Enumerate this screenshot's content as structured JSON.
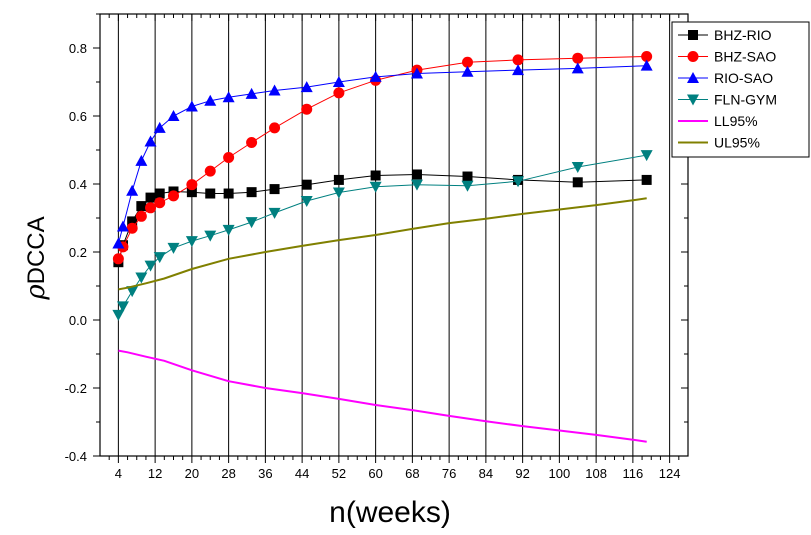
{
  "chart_data": {
    "type": "line",
    "title": "",
    "xlabel": "n(weeks)",
    "ylabel_rho": "ρ",
    "ylabel_rest": "DCCA",
    "xlim": [
      0,
      128
    ],
    "ylim": [
      -0.4,
      0.9
    ],
    "xticks": [
      4,
      12,
      20,
      28,
      36,
      44,
      52,
      60,
      68,
      76,
      84,
      92,
      100,
      108,
      116,
      124
    ],
    "yticks": [
      -0.4,
      -0.2,
      0.0,
      0.2,
      0.4,
      0.6,
      0.8
    ],
    "ytick_labels": [
      "-0.4",
      "-0.2",
      "0.0",
      "0.2",
      "0.4",
      "0.6",
      "0.8"
    ],
    "grid": "vertical",
    "legend_position": "top-right",
    "series": [
      {
        "name": "BHZ-RIO",
        "color": "#000000",
        "marker": "square",
        "x": [
          4,
          5,
          7,
          9,
          11,
          13,
          16,
          20,
          24,
          28,
          33,
          38,
          45,
          52,
          60,
          69,
          80,
          91,
          104,
          119
        ],
        "y": [
          0.17,
          0.22,
          0.29,
          0.335,
          0.36,
          0.372,
          0.378,
          0.376,
          0.372,
          0.372,
          0.376,
          0.385,
          0.398,
          0.412,
          0.425,
          0.428,
          0.422,
          0.412,
          0.405,
          0.412
        ]
      },
      {
        "name": "BHZ-SAO",
        "color": "#ff0000",
        "marker": "circle",
        "x": [
          4,
          5,
          7,
          9,
          11,
          13,
          16,
          20,
          24,
          28,
          33,
          38,
          45,
          52,
          60,
          69,
          80,
          91,
          104,
          119
        ],
        "y": [
          0.18,
          0.215,
          0.27,
          0.305,
          0.33,
          0.345,
          0.365,
          0.398,
          0.438,
          0.478,
          0.522,
          0.565,
          0.62,
          0.668,
          0.705,
          0.735,
          0.758,
          0.765,
          0.77,
          0.775
        ]
      },
      {
        "name": "RIO-SAO",
        "color": "#0000ff",
        "marker": "triangle-up",
        "x": [
          4,
          5,
          7,
          9,
          11,
          13,
          16,
          20,
          24,
          28,
          33,
          38,
          45,
          52,
          60,
          69,
          80,
          91,
          104,
          119
        ],
        "y": [
          0.225,
          0.275,
          0.38,
          0.468,
          0.525,
          0.565,
          0.6,
          0.628,
          0.645,
          0.655,
          0.665,
          0.675,
          0.685,
          0.7,
          0.715,
          0.725,
          0.73,
          0.735,
          0.74,
          0.748
        ]
      },
      {
        "name": "FLN-GYM",
        "color": "#008080",
        "marker": "triangle-down",
        "x": [
          4,
          5,
          7,
          9,
          11,
          13,
          16,
          20,
          24,
          28,
          33,
          38,
          45,
          52,
          60,
          69,
          80,
          91,
          104,
          119
        ],
        "y": [
          0.015,
          0.04,
          0.085,
          0.125,
          0.16,
          0.185,
          0.212,
          0.232,
          0.248,
          0.265,
          0.288,
          0.315,
          0.35,
          0.375,
          0.392,
          0.398,
          0.395,
          0.408,
          0.45,
          0.485
        ]
      },
      {
        "name": "LL95%",
        "color": "#ff00ff",
        "marker": "none",
        "x": [
          4,
          6,
          10,
          14,
          20,
          28,
          36,
          44,
          52,
          60,
          68,
          76,
          84,
          92,
          100,
          108,
          116,
          119
        ],
        "y": [
          -0.09,
          -0.095,
          -0.108,
          -0.12,
          -0.148,
          -0.18,
          -0.2,
          -0.215,
          -0.232,
          -0.25,
          -0.265,
          -0.282,
          -0.298,
          -0.312,
          -0.325,
          -0.338,
          -0.352,
          -0.358
        ]
      },
      {
        "name": "UL95%",
        "color": "#808000",
        "marker": "none",
        "x": [
          4,
          6,
          10,
          14,
          20,
          28,
          36,
          44,
          52,
          60,
          68,
          76,
          84,
          92,
          100,
          108,
          116,
          119
        ],
        "y": [
          0.09,
          0.095,
          0.108,
          0.122,
          0.15,
          0.18,
          0.2,
          0.218,
          0.235,
          0.25,
          0.268,
          0.285,
          0.298,
          0.312,
          0.325,
          0.338,
          0.352,
          0.358
        ]
      }
    ]
  }
}
